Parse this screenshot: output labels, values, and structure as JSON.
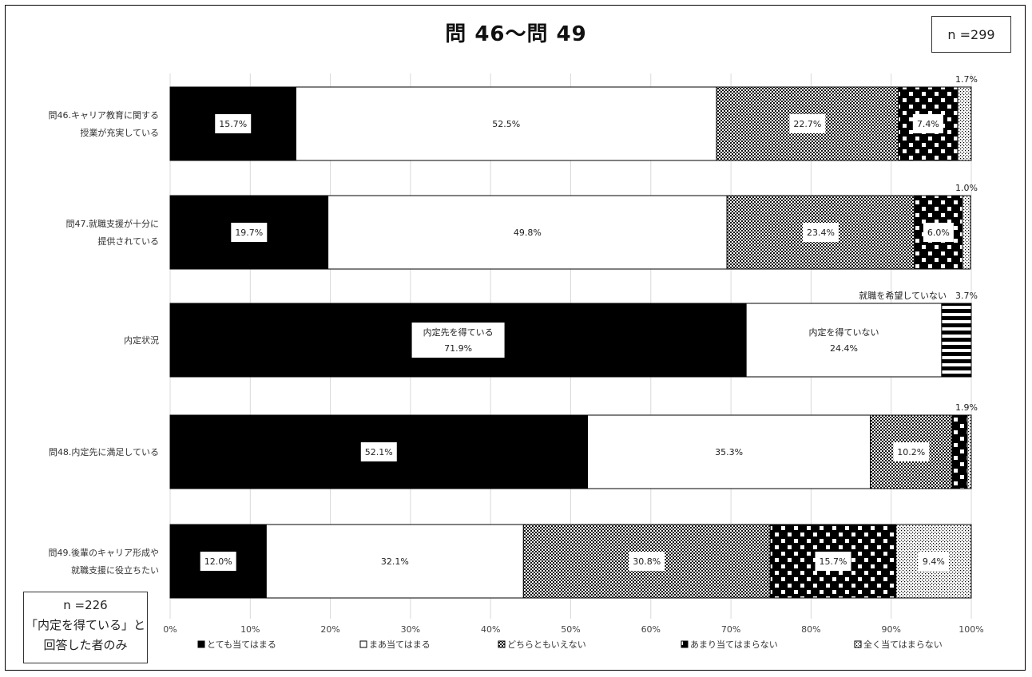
{
  "title": "問 46〜問 49",
  "sample_note": "n =299",
  "footnote": [
    "n =226",
    "「内定を得ている」と",
    "回答した者のみ"
  ],
  "chart_data": {
    "type": "bar",
    "orientation": "horizontal",
    "stacked": "percent",
    "xlim": [
      0,
      100
    ],
    "x_ticks": [
      "0%",
      "10%",
      "20%",
      "30%",
      "40%",
      "50%",
      "60%",
      "70%",
      "80%",
      "90%",
      "100%"
    ],
    "legend": [
      "とても当てはまる",
      "まあ当てはまる",
      "どちらともいえない",
      "あまり当てはまらない",
      "全く当てはまらない"
    ],
    "legend_position": "bottom",
    "rows": [
      {
        "label": [
          "問46.キャリア教育に関する",
          "授業が充実している"
        ],
        "segments": [
          {
            "value": 15.7,
            "label": "15.7%",
            "pattern": "black"
          },
          {
            "value": 52.5,
            "label": "52.5%",
            "pattern": "white"
          },
          {
            "value": 22.7,
            "label": "22.7%",
            "pattern": "check"
          },
          {
            "value": 7.4,
            "label": "7.4%",
            "pattern": "dots-large"
          },
          {
            "value": 1.7,
            "label": "1.7%",
            "pattern": "dots-fine",
            "label_outside": true
          }
        ]
      },
      {
        "label": [
          "問47.就職支援が十分に",
          "提供されている"
        ],
        "segments": [
          {
            "value": 19.7,
            "label": "19.7%",
            "pattern": "black"
          },
          {
            "value": 49.8,
            "label": "49.8%",
            "pattern": "white"
          },
          {
            "value": 23.4,
            "label": "23.4%",
            "pattern": "check"
          },
          {
            "value": 6.0,
            "label": "6.0%",
            "pattern": "dots-large"
          },
          {
            "value": 1.0,
            "label": "1.0%",
            "pattern": "dots-fine",
            "label_outside": true
          }
        ]
      },
      {
        "label": [
          "内定状況"
        ],
        "segments": [
          {
            "value": 71.9,
            "label": [
              "内定先を得ている",
              "71.9%"
            ],
            "pattern": "black"
          },
          {
            "value": 24.4,
            "label": [
              "内定を得ていない",
              "24.4%"
            ],
            "pattern": "white"
          },
          {
            "value": 3.7,
            "label": "就職を希望していない　3.7%",
            "pattern": "stripes",
            "label_outside": true
          }
        ]
      },
      {
        "label": [
          "問48.内定先に満足している"
        ],
        "segments": [
          {
            "value": 52.1,
            "label": "52.1%",
            "pattern": "black"
          },
          {
            "value": 35.3,
            "label": "35.3%",
            "pattern": "white"
          },
          {
            "value": 10.2,
            "label": "10.2%",
            "pattern": "check"
          },
          {
            "value": 1.9,
            "label": "1.9%",
            "pattern": "dots-large",
            "label_outside": true
          },
          {
            "value": 0.5,
            "label": "",
            "pattern": "dots-fine"
          }
        ]
      },
      {
        "label": [
          "問49.後輩のキャリア形成や",
          "就職支援に役立ちたい"
        ],
        "segments": [
          {
            "value": 12.0,
            "label": "12.0%",
            "pattern": "black"
          },
          {
            "value": 32.1,
            "label": "32.1%",
            "pattern": "white"
          },
          {
            "value": 30.8,
            "label": "30.8%",
            "pattern": "check"
          },
          {
            "value": 15.7,
            "label": "15.7%",
            "pattern": "dots-large"
          },
          {
            "value": 9.4,
            "label": "9.4%",
            "pattern": "dots-fine"
          }
        ]
      }
    ]
  }
}
